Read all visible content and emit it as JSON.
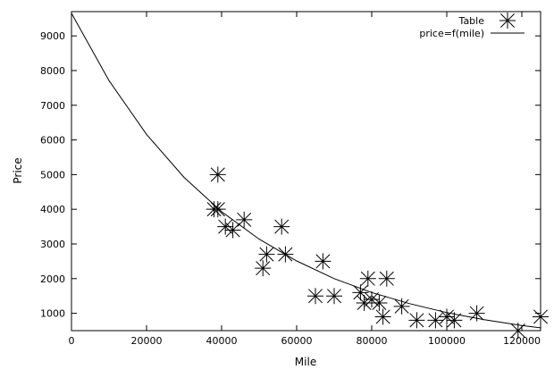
{
  "chart_data": {
    "type": "scatter",
    "xlabel": "Mile",
    "ylabel": "Price",
    "xlim": [
      0,
      125000
    ],
    "ylim": [
      500,
      9700
    ],
    "xticks": [
      {
        "value": 0,
        "label": "0"
      },
      {
        "value": 20000,
        "label": "20000"
      },
      {
        "value": 40000,
        "label": "40000"
      },
      {
        "value": 60000,
        "label": "60000"
      },
      {
        "value": 80000,
        "label": "80000"
      },
      {
        "value": 100000,
        "label": "100000"
      },
      {
        "value": 120000,
        "label": "120000"
      }
    ],
    "yticks": [
      {
        "value": 1000,
        "label": "1000"
      },
      {
        "value": 2000,
        "label": "2000"
      },
      {
        "value": 3000,
        "label": "3000"
      },
      {
        "value": 4000,
        "label": "4000"
      },
      {
        "value": 5000,
        "label": "5000"
      },
      {
        "value": 6000,
        "label": "6000"
      },
      {
        "value": 7000,
        "label": "7000"
      },
      {
        "value": 8000,
        "label": "8000"
      },
      {
        "value": 9000,
        "label": "9000"
      }
    ],
    "grid": false,
    "legend_position": "top-right",
    "series": [
      {
        "name": "Table",
        "kind": "scatter",
        "marker": "star",
        "points": [
          {
            "x": 38000,
            "y": 4000
          },
          {
            "x": 39000,
            "y": 5000
          },
          {
            "x": 39000,
            "y": 4000
          },
          {
            "x": 41000,
            "y": 3500
          },
          {
            "x": 43000,
            "y": 3400
          },
          {
            "x": 46000,
            "y": 3700
          },
          {
            "x": 51000,
            "y": 2300
          },
          {
            "x": 52000,
            "y": 2700
          },
          {
            "x": 56000,
            "y": 3500
          },
          {
            "x": 57000,
            "y": 2700
          },
          {
            "x": 65000,
            "y": 1500
          },
          {
            "x": 67000,
            "y": 2500
          },
          {
            "x": 70000,
            "y": 1500
          },
          {
            "x": 77000,
            "y": 1600
          },
          {
            "x": 78000,
            "y": 1300
          },
          {
            "x": 79000,
            "y": 2000
          },
          {
            "x": 80000,
            "y": 1400
          },
          {
            "x": 82000,
            "y": 1300
          },
          {
            "x": 83000,
            "y": 900
          },
          {
            "x": 84000,
            "y": 2000
          },
          {
            "x": 88000,
            "y": 1200
          },
          {
            "x": 92000,
            "y": 800
          },
          {
            "x": 97000,
            "y": 800
          },
          {
            "x": 100000,
            "y": 900
          },
          {
            "x": 102000,
            "y": 800
          },
          {
            "x": 108000,
            "y": 1000
          },
          {
            "x": 119000,
            "y": 500
          },
          {
            "x": 125000,
            "y": 900
          }
        ]
      },
      {
        "name": "price=f(mile)",
        "kind": "line",
        "points": [
          {
            "x": 0,
            "y": 9650
          },
          {
            "x": 10000,
            "y": 7710
          },
          {
            "x": 20000,
            "y": 6160
          },
          {
            "x": 30000,
            "y": 4920
          },
          {
            "x": 40000,
            "y": 3930
          },
          {
            "x": 50000,
            "y": 3140
          },
          {
            "x": 60000,
            "y": 2510
          },
          {
            "x": 70000,
            "y": 2000
          },
          {
            "x": 80000,
            "y": 1600
          },
          {
            "x": 90000,
            "y": 1280
          },
          {
            "x": 100000,
            "y": 1020
          },
          {
            "x": 110000,
            "y": 815
          },
          {
            "x": 120000,
            "y": 650
          },
          {
            "x": 125000,
            "y": 580
          }
        ]
      }
    ]
  }
}
